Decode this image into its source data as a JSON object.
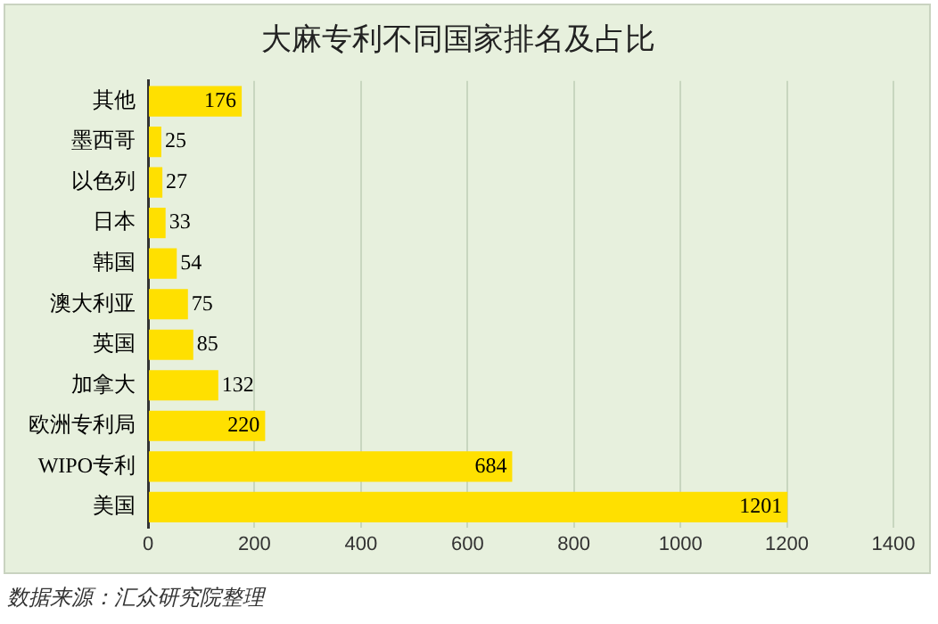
{
  "chart_data": {
    "type": "bar",
    "orientation": "horizontal",
    "title": "大麻专利不同国家排名及占比",
    "categories": [
      "其他",
      "墨西哥",
      "以色列",
      "日本",
      "韩国",
      "澳大利亚",
      "英国",
      "加拿大",
      "欧洲专利局",
      "WIPO专利",
      "美国"
    ],
    "values": [
      176,
      25,
      27,
      33,
      54,
      75,
      85,
      132,
      220,
      684,
      1201
    ],
    "color": "#ffe000",
    "xlim": [
      0,
      1400
    ],
    "xticks": [
      0,
      200,
      400,
      600,
      800,
      1000,
      1200,
      1400
    ],
    "grid": "x",
    "data_labels": true,
    "annotations": [
      "数据来源：汇众研究院整理"
    ]
  }
}
